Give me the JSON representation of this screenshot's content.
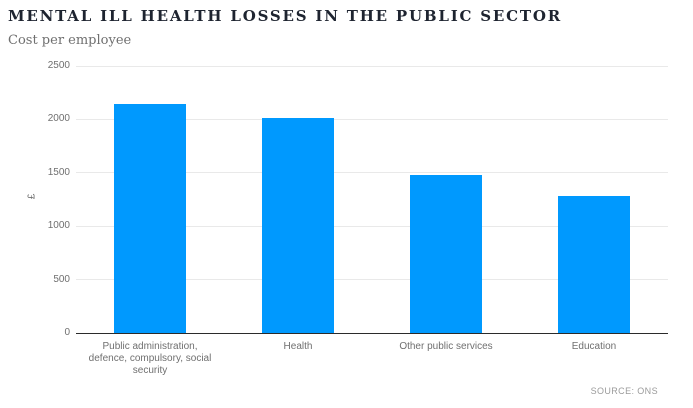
{
  "header": {
    "title": "MENTAL ILL HEALTH LOSSES IN THE PUBLIC SECTOR",
    "subtitle": "Cost per employee"
  },
  "source": "SOURCE: ONS",
  "colors": {
    "background": "#ffffff",
    "bar": "#0099fe",
    "title_text": "#1e2430",
    "muted_text": "#6f6f6f",
    "gridline": "#e9e9e9",
    "baseline": "#2b2b2b",
    "source_text": "#9b9b9b"
  },
  "chart_data": {
    "type": "bar",
    "title": "MENTAL ILL HEALTH LOSSES IN THE PUBLIC SECTOR",
    "subtitle": "Cost per employee",
    "categories": [
      "Public administration,\ndefence, compulsory, social\nsecurity",
      "Health",
      "Other public services",
      "Education"
    ],
    "values": [
      2145,
      2010,
      1475,
      1285
    ],
    "xlabel": "",
    "ylabel": "£",
    "ylim": [
      0,
      2500
    ],
    "yticks": [
      0,
      500,
      1000,
      1500,
      2000,
      2500
    ],
    "grid": true,
    "legend": false,
    "source": "SOURCE: ONS"
  }
}
